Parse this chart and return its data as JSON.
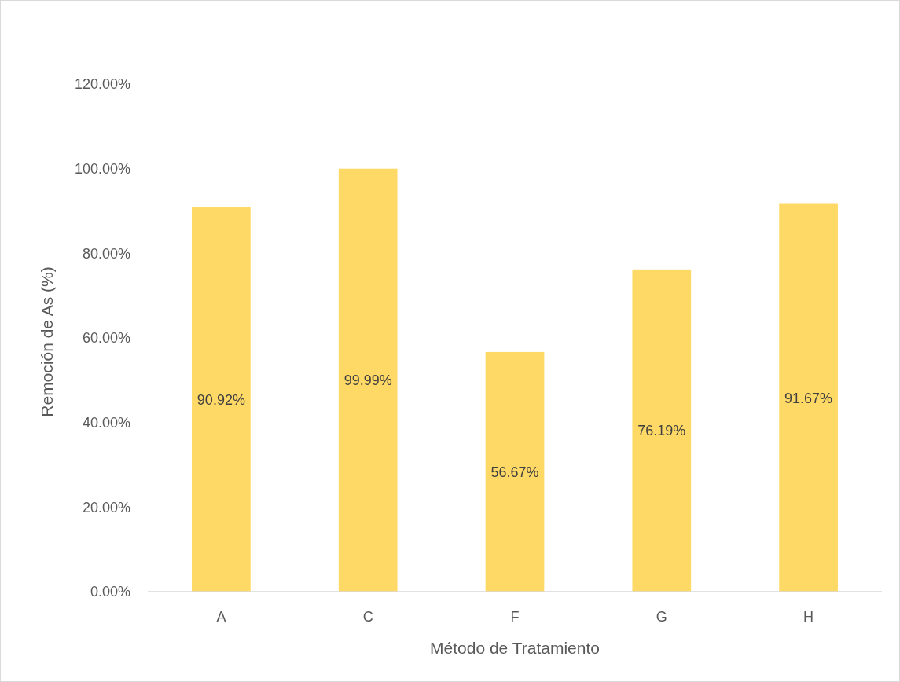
{
  "chart_data": {
    "type": "bar",
    "xlabel": "Método de Tratamiento",
    "ylabel": "Remoción de As (%)",
    "categories": [
      "A",
      "C",
      "F",
      "G",
      "H"
    ],
    "values": [
      90.92,
      99.99,
      56.67,
      76.19,
      91.67
    ],
    "value_labels": [
      "90.92%",
      "99.99%",
      "56.67%",
      "76.19%",
      "91.67%"
    ],
    "color": "#ffd966",
    "ylim": [
      0,
      120
    ],
    "yticks": [
      {
        "value": 0,
        "label": "0.00%"
      },
      {
        "value": 20,
        "label": "20.00%"
      },
      {
        "value": 40,
        "label": "40.00%"
      },
      {
        "value": 60,
        "label": "60.00%"
      },
      {
        "value": 80,
        "label": "80.00%"
      },
      {
        "value": 100,
        "label": "100.00%"
      },
      {
        "value": 120,
        "label": "120.00%"
      }
    ],
    "grid": false
  }
}
